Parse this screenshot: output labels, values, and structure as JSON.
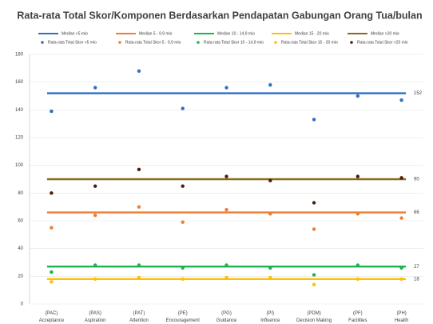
{
  "chart_data": {
    "type": "scatter",
    "title": "Rata-rata Total Skor/Komponen Berdasarkan Pendapatan Gabungan Orang Tua/bulan",
    "categories": [
      "(PAC) Acceptance",
      "(PAS) Aspiration",
      "(PAT) Attention",
      "(PE) Encouragement",
      "(PG) Guidance",
      "(PI) Influence",
      "(PDM) Decision Making",
      "(PF) Facilities",
      "(PH) Health"
    ],
    "ylim": [
      0,
      180
    ],
    "yticks": [
      0,
      20,
      40,
      60,
      80,
      100,
      120,
      140,
      160,
      180
    ],
    "grid": true,
    "medians": [
      {
        "name": "Median <5 mio",
        "color": "#2e6fc0",
        "value": 152
      },
      {
        "name": "Median 5 - 9,9 mio",
        "color": "#ed7d31",
        "value": 66
      },
      {
        "name": "Median 10 - 14,9 mio",
        "color": "#1db34f",
        "value": 27
      },
      {
        "name": "Median 15 - 20 mio",
        "color": "#ffc000",
        "value": 18
      },
      {
        "name": "Median >20 mio",
        "color": "#8a6a12",
        "value": 90
      }
    ],
    "series": [
      {
        "name": "Rata-rata Total Skor <5 mio",
        "color": "#2e6fc0",
        "values": [
          139,
          156,
          168,
          141,
          156,
          158,
          133,
          150,
          147
        ]
      },
      {
        "name": "Rata-rata Total Skor 5 - 9,9 mio",
        "color": "#ed7d31",
        "values": [
          55,
          64,
          70,
          59,
          68,
          65,
          54,
          65,
          62
        ]
      },
      {
        "name": "Rata-rata Total Skor 10 - 14,9 mio",
        "color": "#1db34f",
        "values": [
          23,
          28,
          28,
          26,
          28,
          26,
          21,
          28,
          26
        ]
      },
      {
        "name": "Rata-rata Total Skor 15 - 20 mio",
        "color": "#ffc000",
        "values": [
          16,
          18,
          19,
          18,
          19,
          19,
          14,
          18,
          18
        ]
      },
      {
        "name": "Rata-rata Total Skor >20 mio",
        "color": "#4a1e0a",
        "values": [
          80,
          85,
          97,
          85,
          92,
          89,
          73,
          92,
          91
        ]
      }
    ]
  }
}
